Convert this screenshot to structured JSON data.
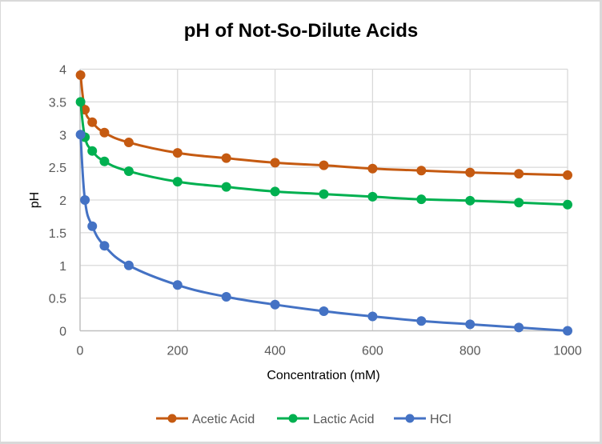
{
  "chart_data": {
    "type": "line",
    "title": "pH of Not-So-Dilute Acids",
    "xlabel": "Concentration (mM)",
    "ylabel": "pH",
    "xlim": [
      0,
      1000
    ],
    "ylim": [
      0,
      4
    ],
    "x_ticks": [
      "0",
      "200",
      "400",
      "600",
      "800",
      "1000"
    ],
    "x_tick_values": [
      0,
      200,
      400,
      600,
      800,
      1000
    ],
    "y_ticks": [
      "0",
      "0.5",
      "1",
      "1.5",
      "2",
      "2.5",
      "3",
      "3.5",
      "4"
    ],
    "y_tick_values": [
      0,
      0.5,
      1,
      1.5,
      2,
      2.5,
      3,
      3.5,
      4
    ],
    "grid": true,
    "legend_position": "bottom",
    "x": [
      1,
      10,
      25,
      50,
      100,
      200,
      300,
      400,
      500,
      600,
      700,
      800,
      900,
      1000
    ],
    "series": [
      {
        "name": "Acetic Acid",
        "color": "#C55A11",
        "values": [
          3.91,
          3.38,
          3.19,
          3.03,
          2.88,
          2.72,
          2.64,
          2.57,
          2.53,
          2.48,
          2.45,
          2.42,
          2.4,
          2.38
        ]
      },
      {
        "name": "Lactic Acid",
        "color": "#00B050",
        "values": [
          3.5,
          2.96,
          2.75,
          2.59,
          2.44,
          2.28,
          2.2,
          2.13,
          2.09,
          2.05,
          2.01,
          1.99,
          1.96,
          1.93
        ]
      },
      {
        "name": "HCl",
        "color": "#4472C4",
        "values": [
          3.0,
          2.0,
          1.6,
          1.3,
          1.0,
          0.7,
          0.52,
          0.4,
          0.3,
          0.22,
          0.15,
          0.1,
          0.05,
          0.0
        ]
      }
    ]
  }
}
